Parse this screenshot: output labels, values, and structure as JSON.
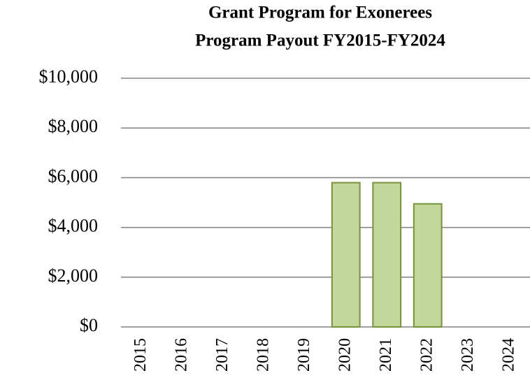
{
  "chart_data": {
    "type": "bar",
    "title": "Grant Program for Exonerees",
    "subtitle": "Program Payout FY2015-FY2024",
    "categories": [
      "2015",
      "2016",
      "2017",
      "2018",
      "2019",
      "2020",
      "2021",
      "2022",
      "2023",
      "2024"
    ],
    "values": [
      0,
      0,
      0,
      0,
      0,
      5800,
      5800,
      4950,
      0,
      0
    ],
    "color": "#c4d79b",
    "edge_color": "#76933c",
    "ylim": [
      0,
      10000
    ],
    "yticks": [
      {
        "value": 0,
        "label": "$0"
      },
      {
        "value": 2000,
        "label": "$2,000"
      },
      {
        "value": 4000,
        "label": "$4,000"
      },
      {
        "value": 6000,
        "label": "$6,000"
      },
      {
        "value": 8000,
        "label": "$8,000"
      },
      {
        "value": 10000,
        "label": "$10,000"
      }
    ],
    "grid": true
  }
}
